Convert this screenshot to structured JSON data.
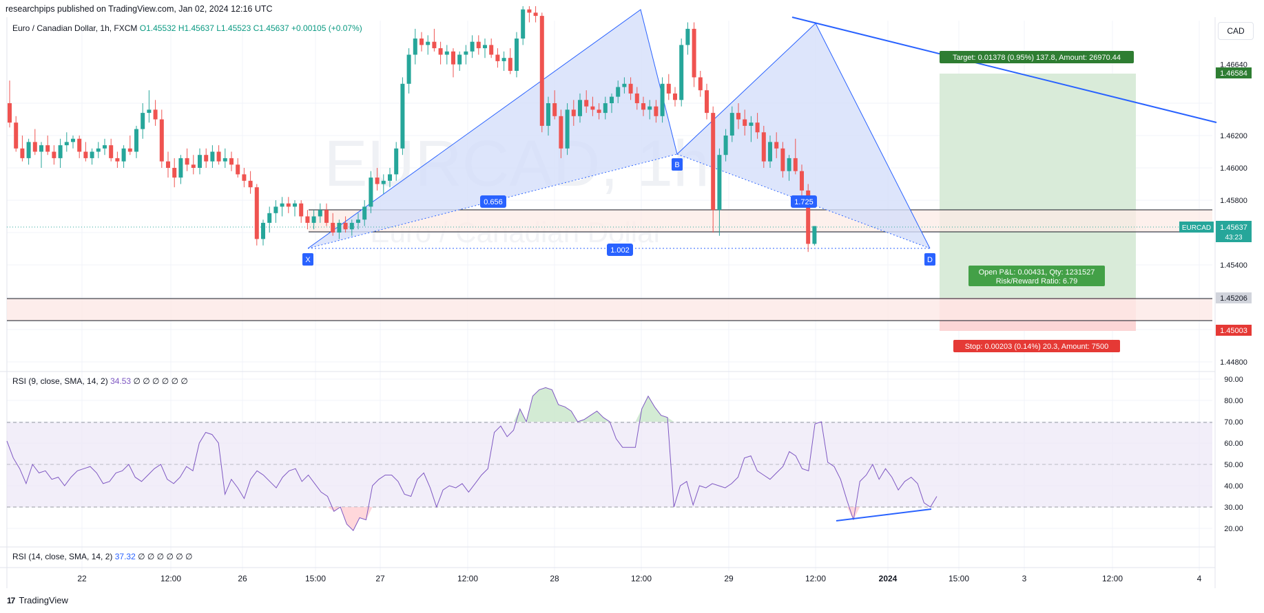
{
  "header": {
    "publisher": "researchpips published on TradingView.com, Jan 02, 2024 12:16 UTC"
  },
  "symbol": {
    "name": "Euro / Canadian Dollar, 1h, FXCM",
    "open": "O1.45532",
    "high": "H1.45637",
    "low": "L1.45523",
    "close": "C1.45637",
    "change": "+0.00105 (+0.07%)"
  },
  "currency_button": "CAD",
  "watermark": {
    "ticker": "EURCAD, 1h",
    "full_name": "Euro / Canadian Dollar"
  },
  "pattern": {
    "points": [
      "X",
      "B",
      "D"
    ],
    "ratio_xb": "0.656",
    "ratio_bd": "1.725",
    "ratio_xd": "1.002"
  },
  "position": {
    "target_label": "Target: 0.01378 (0.95%) 137.8, Amount: 26970.44",
    "stop_label": "Stop: 0.00203 (0.14%) 20.3, Amount: 7500",
    "pnl_line1": "Open P&L: 0.00431, Qty: 1231527",
    "pnl_line2": "Risk/Reward Ratio: 6.79"
  },
  "price_axis": {
    "ticks": [
      "1.46640",
      "1.46200",
      "1.46000",
      "1.45800",
      "1.45400",
      "1.44800"
    ],
    "tp_label": "1.46584",
    "entry_label": "1.45206",
    "sl_label": "1.45003",
    "last_symbol": "EURCAD",
    "last_price": "1.45637",
    "countdown": "43:23"
  },
  "rsi_axis": {
    "ticks": [
      "90.00",
      "80.00",
      "70.00",
      "60.00",
      "50.00",
      "40.00",
      "30.00",
      "20.00"
    ]
  },
  "time_axis": {
    "ticks": [
      "22",
      "12:00",
      "26",
      "15:00",
      "27",
      "12:00",
      "28",
      "12:00",
      "29",
      "12:00",
      "2024",
      "15:00",
      "3",
      "12:00",
      "4"
    ]
  },
  "indicators": {
    "rsi1_name": "RSI (9, close, SMA, 14, 2)",
    "rsi1_value": "34.53",
    "rsi1_extra": "∅ ∅ ∅ ∅ ∅ ∅",
    "rsi2_name": "RSI (14, close, SMA, 14, 2)",
    "rsi2_value": "37.32",
    "rsi2_extra": "∅ ∅ ∅ ∅ ∅ ∅"
  },
  "footer": {
    "logo": "17",
    "brand": "TradingView"
  },
  "colors": {
    "up": "#26a69a",
    "down": "#ef5350",
    "pattern_fill": "#dbe4fb",
    "pattern_line": "#2962ff",
    "tp_zone": "#d4e8d4",
    "sl_zone": "#fcd6d6",
    "rsi_line": "#7e57c2",
    "rsi_band": "#ede7f6",
    "trendline": "#2962ff"
  },
  "chart_data": {
    "type": "candlestick",
    "symbol": "EURCAD",
    "timeframe": "1h",
    "price_range": [
      1.447,
      1.4698
    ],
    "candles": [
      [
        1.464,
        1.4654,
        1.4625,
        1.4628
      ],
      [
        1.4628,
        1.4632,
        1.461,
        1.4612
      ],
      [
        1.4612,
        1.462,
        1.4604,
        1.4606
      ],
      [
        1.4606,
        1.4618,
        1.4602,
        1.4616
      ],
      [
        1.4616,
        1.4624,
        1.4608,
        1.461
      ],
      [
        1.461,
        1.4616,
        1.46,
        1.4614
      ],
      [
        1.4614,
        1.462,
        1.4608,
        1.461
      ],
      [
        1.461,
        1.4614,
        1.4602,
        1.4606
      ],
      [
        1.4606,
        1.4618,
        1.46,
        1.4614
      ],
      [
        1.4614,
        1.4622,
        1.461,
        1.4616
      ],
      [
        1.4616,
        1.462,
        1.4612,
        1.4618
      ],
      [
        1.4618,
        1.462,
        1.4606,
        1.461
      ],
      [
        1.461,
        1.4616,
        1.4604,
        1.4606
      ],
      [
        1.4606,
        1.4612,
        1.4602,
        1.461
      ],
      [
        1.461,
        1.4616,
        1.4606,
        1.4612
      ],
      [
        1.4612,
        1.4618,
        1.4608,
        1.4614
      ],
      [
        1.4614,
        1.4618,
        1.4604,
        1.4606
      ],
      [
        1.4606,
        1.461,
        1.46,
        1.4604
      ],
      [
        1.4604,
        1.4614,
        1.46,
        1.4612
      ],
      [
        1.4612,
        1.462,
        1.4608,
        1.461
      ],
      [
        1.461,
        1.4626,
        1.4606,
        1.4624
      ],
      [
        1.4624,
        1.464,
        1.4618,
        1.4634
      ],
      [
        1.4634,
        1.4648,
        1.4628,
        1.4636
      ],
      [
        1.4636,
        1.4642,
        1.4626,
        1.463
      ],
      [
        1.463,
        1.4636,
        1.46,
        1.4604
      ],
      [
        1.4604,
        1.461,
        1.4594,
        1.46
      ],
      [
        1.46,
        1.4606,
        1.4588,
        1.4594
      ],
      [
        1.4594,
        1.4608,
        1.459,
        1.4606
      ],
      [
        1.4606,
        1.4612,
        1.4598,
        1.4602
      ],
      [
        1.4602,
        1.4608,
        1.4596,
        1.46
      ],
      [
        1.46,
        1.4612,
        1.4596,
        1.4608
      ],
      [
        1.4608,
        1.4612,
        1.46,
        1.4604
      ],
      [
        1.4604,
        1.4614,
        1.46,
        1.461
      ],
      [
        1.461,
        1.4614,
        1.4602,
        1.4604
      ],
      [
        1.4604,
        1.4612,
        1.46,
        1.4606
      ],
      [
        1.4606,
        1.461,
        1.4598,
        1.4602
      ],
      [
        1.4602,
        1.4606,
        1.4594,
        1.4596
      ],
      [
        1.4596,
        1.46,
        1.4588,
        1.4592
      ],
      [
        1.4592,
        1.4598,
        1.4584,
        1.4588
      ],
      [
        1.4588,
        1.459,
        1.4552,
        1.4556
      ],
      [
        1.4556,
        1.4568,
        1.4552,
        1.4566
      ],
      [
        1.4566,
        1.4576,
        1.456,
        1.4572
      ],
      [
        1.4572,
        1.458,
        1.4566,
        1.4576
      ],
      [
        1.4576,
        1.4582,
        1.457,
        1.4578
      ],
      [
        1.4578,
        1.4582,
        1.4572,
        1.4576
      ],
      [
        1.4576,
        1.458,
        1.457,
        1.4578
      ],
      [
        1.4578,
        1.458,
        1.4566,
        1.457
      ],
      [
        1.457,
        1.4574,
        1.4562,
        1.4566
      ],
      [
        1.4566,
        1.4574,
        1.4562,
        1.457
      ],
      [
        1.457,
        1.4578,
        1.4566,
        1.4574
      ],
      [
        1.4574,
        1.4578,
        1.4564,
        1.4566
      ],
      [
        1.4566,
        1.4572,
        1.4558,
        1.456
      ],
      [
        1.456,
        1.4568,
        1.4556,
        1.4566
      ],
      [
        1.4566,
        1.457,
        1.456,
        1.4562
      ],
      [
        1.4562,
        1.4568,
        1.4558,
        1.4566
      ],
      [
        1.4566,
        1.4572,
        1.4562,
        1.4568
      ],
      [
        1.4568,
        1.458,
        1.4564,
        1.4576
      ],
      [
        1.4576,
        1.4598,
        1.4572,
        1.4594
      ],
      [
        1.4594,
        1.46,
        1.4586,
        1.459
      ],
      [
        1.459,
        1.4596,
        1.4584,
        1.4592
      ],
      [
        1.4592,
        1.46,
        1.4588,
        1.4596
      ],
      [
        1.4596,
        1.4616,
        1.4592,
        1.4612
      ],
      [
        1.4612,
        1.4656,
        1.4608,
        1.4652
      ],
      [
        1.4652,
        1.4674,
        1.4646,
        1.467
      ],
      [
        1.467,
        1.4686,
        1.4664,
        1.468
      ],
      [
        1.468,
        1.4684,
        1.4672,
        1.4676
      ],
      [
        1.4676,
        1.4682,
        1.467,
        1.4678
      ],
      [
        1.4678,
        1.4686,
        1.4672,
        1.4674
      ],
      [
        1.4674,
        1.4678,
        1.4664,
        1.467
      ],
      [
        1.467,
        1.4676,
        1.4664,
        1.4672
      ],
      [
        1.4672,
        1.4674,
        1.4656,
        1.4664
      ],
      [
        1.4664,
        1.4672,
        1.466,
        1.467
      ],
      [
        1.467,
        1.4676,
        1.4664,
        1.4672
      ],
      [
        1.4672,
        1.4682,
        1.4668,
        1.4678
      ],
      [
        1.4678,
        1.4682,
        1.467,
        1.4674
      ],
      [
        1.4674,
        1.468,
        1.4668,
        1.4676
      ],
      [
        1.4676,
        1.468,
        1.4668,
        1.467
      ],
      [
        1.467,
        1.4674,
        1.4662,
        1.4666
      ],
      [
        1.4666,
        1.4672,
        1.466,
        1.4668
      ],
      [
        1.4668,
        1.4674,
        1.4658,
        1.466
      ],
      [
        1.466,
        1.4684,
        1.4656,
        1.468
      ],
      [
        1.468,
        1.47,
        1.4676,
        1.4698
      ],
      [
        1.4698,
        1.47,
        1.469,
        1.4696
      ],
      [
        1.4696,
        1.47,
        1.469,
        1.4694
      ],
      [
        1.4694,
        1.4696,
        1.4622,
        1.4626
      ],
      [
        1.4626,
        1.4644,
        1.462,
        1.464
      ],
      [
        1.464,
        1.4648,
        1.463,
        1.4632
      ],
      [
        1.4632,
        1.4636,
        1.4606,
        1.4612
      ],
      [
        1.4612,
        1.464,
        1.4608,
        1.4636
      ],
      [
        1.4636,
        1.4642,
        1.4626,
        1.4632
      ],
      [
        1.4632,
        1.4646,
        1.4628,
        1.4642
      ],
      [
        1.4642,
        1.4648,
        1.4634,
        1.4638
      ],
      [
        1.4638,
        1.4644,
        1.4632,
        1.4636
      ],
      [
        1.4636,
        1.464,
        1.463,
        1.4634
      ],
      [
        1.4634,
        1.4644,
        1.463,
        1.464
      ],
      [
        1.464,
        1.4646,
        1.4634,
        1.4644
      ],
      [
        1.4644,
        1.4654,
        1.464,
        1.465
      ],
      [
        1.465,
        1.4656,
        1.4646,
        1.4652
      ],
      [
        1.4652,
        1.4656,
        1.4642,
        1.4646
      ],
      [
        1.4646,
        1.465,
        1.4636,
        1.464
      ],
      [
        1.464,
        1.4644,
        1.4632,
        1.4636
      ],
      [
        1.4636,
        1.4642,
        1.463,
        1.4638
      ],
      [
        1.4638,
        1.4642,
        1.4628,
        1.4632
      ],
      [
        1.4632,
        1.4656,
        1.4628,
        1.4652
      ],
      [
        1.4652,
        1.4658,
        1.4642,
        1.4646
      ],
      [
        1.4646,
        1.465,
        1.4638,
        1.4642
      ],
      [
        1.4642,
        1.468,
        1.4638,
        1.4676
      ],
      [
        1.4676,
        1.469,
        1.467,
        1.4686
      ],
      [
        1.4686,
        1.469,
        1.465,
        1.4656
      ],
      [
        1.4656,
        1.466,
        1.4644,
        1.4648
      ],
      [
        1.4648,
        1.4652,
        1.463,
        1.4634
      ],
      [
        1.4634,
        1.4638,
        1.456,
        1.4574
      ],
      [
        1.4574,
        1.4612,
        1.4558,
        1.4608
      ],
      [
        1.4608,
        1.4624,
        1.4604,
        1.462
      ],
      [
        1.462,
        1.4638,
        1.4616,
        1.4634
      ],
      [
        1.4634,
        1.464,
        1.4624,
        1.463
      ],
      [
        1.463,
        1.4636,
        1.462,
        1.4626
      ],
      [
        1.4626,
        1.4632,
        1.4616,
        1.4628
      ],
      [
        1.4628,
        1.4634,
        1.4618,
        1.4622
      ],
      [
        1.4622,
        1.4626,
        1.46,
        1.4604
      ],
      [
        1.4604,
        1.462,
        1.46,
        1.4616
      ],
      [
        1.4616,
        1.4622,
        1.4606,
        1.4612
      ],
      [
        1.4612,
        1.4616,
        1.4594,
        1.4598
      ],
      [
        1.4598,
        1.4608,
        1.4592,
        1.4606
      ],
      [
        1.4606,
        1.4618,
        1.4596,
        1.4598
      ],
      [
        1.4598,
        1.4602,
        1.458,
        1.4586
      ],
      [
        1.4586,
        1.459,
        1.4548,
        1.4553
      ],
      [
        1.4553,
        1.4564,
        1.4552,
        1.4564
      ]
    ],
    "tp_level": 1.46584,
    "entry_level": 1.45206,
    "sl_level": 1.45003,
    "last_price": 1.45637,
    "rsi9_values": [
      61,
      53,
      48,
      41,
      50,
      46,
      47,
      43,
      44,
      40,
      44,
      47,
      48,
      49,
      46,
      41,
      42,
      46,
      47,
      50,
      44,
      42,
      45,
      48,
      50,
      43,
      41,
      44,
      49,
      47,
      60,
      65,
      64,
      60,
      36,
      43,
      39,
      34,
      43,
      47,
      45,
      42,
      39,
      44,
      47,
      48,
      42,
      45,
      41,
      37,
      35,
      28,
      30,
      22,
      19,
      25,
      24,
      40,
      43,
      45,
      45,
      42,
      36,
      35,
      43,
      46,
      39,
      30,
      38,
      40,
      39,
      41,
      37,
      41,
      45,
      48,
      65,
      68,
      63,
      66,
      76,
      70,
      82,
      85,
      86,
      85,
      78,
      77,
      75,
      70,
      71,
      73,
      75,
      72,
      70,
      62,
      58,
      58,
      58,
      76,
      82,
      77,
      73,
      72,
      30,
      40,
      42,
      31,
      40,
      39,
      41,
      40,
      39,
      41,
      44,
      53,
      54,
      47,
      45,
      43,
      46,
      49,
      56,
      54,
      48,
      47,
      69,
      70,
      51,
      49,
      43,
      33,
      24,
      42,
      45,
      50,
      43,
      48,
      44,
      38,
      42,
      44,
      41,
      32,
      30,
      35
    ]
  }
}
